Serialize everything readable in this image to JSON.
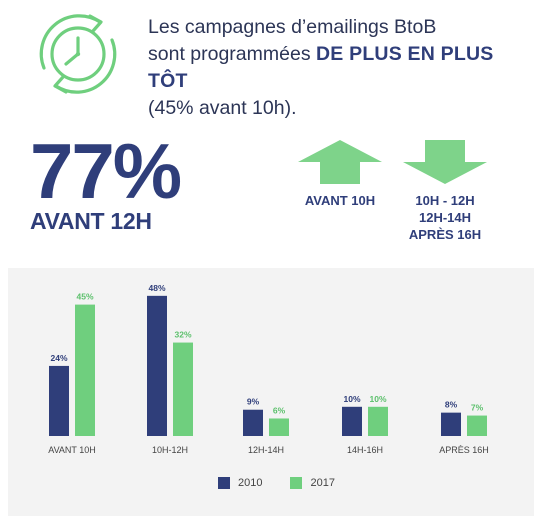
{
  "headline": {
    "line1": "Les campagnes d’emailings BtoB",
    "line2_prefix": "sont programmées ",
    "line2_emphasis": "DE PLUS EN PLUS TÔT",
    "line3": "(45% avant 10h)."
  },
  "big_stat": {
    "value": "77%",
    "label": "AVANT 12H"
  },
  "trend_up": {
    "label_lines": [
      "AVANT 10H"
    ]
  },
  "trend_down": {
    "label_lines": [
      "10H - 12H",
      "12H-14H",
      "APRÈS 16H"
    ]
  },
  "colors": {
    "navy": "#2f3e7a",
    "green": "#6fcf7e",
    "arrow_green": "#7ed38a",
    "panel_bg": "#f3f3f3"
  },
  "icons": {
    "header": "clock-cycle-icon",
    "up": "arrow-up-icon",
    "down": "arrow-down-icon"
  },
  "chart_data": {
    "type": "bar",
    "categories": [
      "AVANT 10H",
      "10H-12H",
      "12H-14H",
      "14H-16H",
      "APRÈS 16H"
    ],
    "series": [
      {
        "name": "2010",
        "values": [
          24,
          48,
          9,
          10,
          8
        ],
        "labels": [
          "24%",
          "48%",
          "9%",
          "10%",
          "8%"
        ],
        "color": "#2f3e7a"
      },
      {
        "name": "2017",
        "values": [
          45,
          32,
          6,
          10,
          7
        ],
        "labels": [
          "45%",
          "32%",
          "6%",
          "10%",
          "7%"
        ],
        "color": "#6fcf7e"
      }
    ],
    "ylim": [
      0,
      50
    ],
    "legend": "bottom",
    "grid": false
  }
}
